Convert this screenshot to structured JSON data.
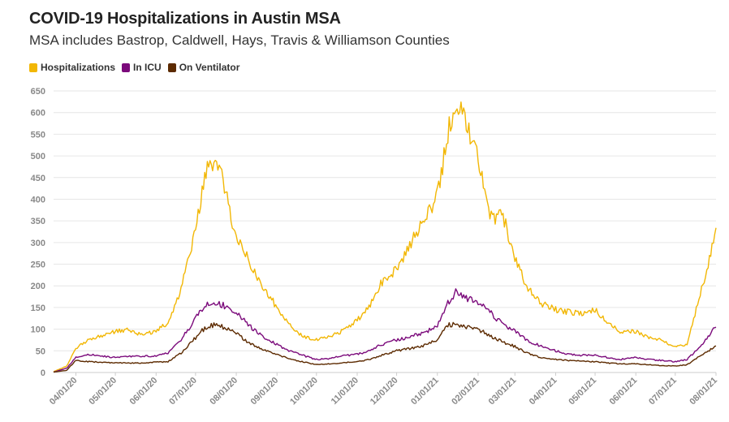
{
  "chart_data": {
    "type": "line",
    "title": "COVID-19 Hospitalizations in Austin MSA",
    "subtitle": "MSA includes Bastrop, Caldwell, Hays, Travis & Williamson Counties",
    "xlabel": "",
    "ylabel": "",
    "ylim": [
      0,
      650
    ],
    "yticks": [
      0,
      50,
      100,
      150,
      200,
      250,
      300,
      350,
      400,
      450,
      500,
      550,
      600,
      650
    ],
    "xlim": [
      "2020-03-15",
      "2021-08-01"
    ],
    "xticks": [
      "04/01/20",
      "05/01/20",
      "06/01/20",
      "07/01/20",
      "08/01/20",
      "09/01/20",
      "10/01/20",
      "11/01/20",
      "12/01/20",
      "01/01/21",
      "02/01/21",
      "03/01/21",
      "04/01/21",
      "05/01/21",
      "06/01/21",
      "07/01/21",
      "08/01/21"
    ],
    "legend_position": "top-left",
    "grid": true,
    "x": [
      "2020-03-15",
      "2020-03-25",
      "2020-04-01",
      "2020-04-10",
      "2020-04-20",
      "2020-05-01",
      "2020-05-10",
      "2020-05-20",
      "2020-06-01",
      "2020-06-10",
      "2020-06-20",
      "2020-07-01",
      "2020-07-05",
      "2020-07-10",
      "2020-07-15",
      "2020-07-20",
      "2020-08-01",
      "2020-08-10",
      "2020-08-20",
      "2020-09-01",
      "2020-09-10",
      "2020-09-20",
      "2020-10-01",
      "2020-10-10",
      "2020-10-20",
      "2020-11-01",
      "2020-11-10",
      "2020-11-20",
      "2020-12-01",
      "2020-12-10",
      "2020-12-20",
      "2021-01-01",
      "2021-01-05",
      "2021-01-10",
      "2021-01-15",
      "2021-01-20",
      "2021-02-01",
      "2021-02-10",
      "2021-02-20",
      "2021-03-01",
      "2021-03-10",
      "2021-03-20",
      "2021-04-01",
      "2021-04-10",
      "2021-04-20",
      "2021-05-01",
      "2021-05-10",
      "2021-05-20",
      "2021-06-01",
      "2021-06-10",
      "2021-06-20",
      "2021-07-01",
      "2021-07-10",
      "2021-07-20",
      "2021-08-01"
    ],
    "series": [
      {
        "name": "Hospitalizations",
        "color": "#F2B705",
        "values": [
          2,
          15,
          55,
          75,
          85,
          95,
          98,
          88,
          95,
          115,
          190,
          330,
          400,
          470,
          485,
          460,
          310,
          260,
          205,
          150,
          110,
          85,
          75,
          82,
          95,
          120,
          150,
          210,
          240,
          290,
          340,
          410,
          480,
          575,
          600,
          610,
          500,
          360,
          360,
          260,
          200,
          160,
          145,
          140,
          135,
          145,
          115,
          95,
          95,
          82,
          75,
          58,
          65,
          180,
          325
        ]
      },
      {
        "name": "In ICU",
        "color": "#7B0A7B",
        "values": [
          1,
          10,
          35,
          42,
          38,
          35,
          37,
          38,
          38,
          45,
          75,
          125,
          140,
          155,
          160,
          158,
          140,
          110,
          85,
          65,
          50,
          40,
          30,
          32,
          38,
          42,
          50,
          65,
          75,
          82,
          90,
          105,
          135,
          165,
          185,
          175,
          160,
          140,
          110,
          95,
          75,
          62,
          50,
          42,
          40,
          40,
          35,
          30,
          35,
          30,
          28,
          25,
          30,
          60,
          108
        ]
      },
      {
        "name": "On Ventilator",
        "color": "#5C2A00",
        "values": [
          1,
          5,
          28,
          25,
          24,
          22,
          22,
          22,
          24,
          25,
          45,
          80,
          95,
          105,
          110,
          108,
          90,
          70,
          55,
          42,
          32,
          25,
          18,
          20,
          22,
          25,
          30,
          40,
          50,
          55,
          60,
          75,
          95,
          110,
          110,
          108,
          100,
          85,
          70,
          60,
          45,
          35,
          30,
          28,
          26,
          25,
          22,
          20,
          20,
          18,
          16,
          15,
          18,
          38,
          60
        ]
      }
    ]
  }
}
